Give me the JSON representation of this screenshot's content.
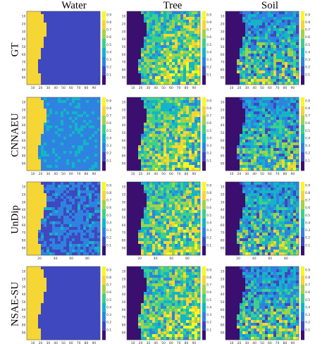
{
  "columns": [
    "Water",
    "Tree",
    "Soil"
  ],
  "rows": [
    "GT",
    "CNNAEU",
    "UnDip",
    "NSAE-SU"
  ],
  "ytick_labels": [
    "10",
    "20",
    "30",
    "40",
    "50",
    "60",
    "70",
    "80",
    "90"
  ],
  "xtick_labels_a": [
    "10",
    "20",
    "30",
    "40",
    "50",
    "60",
    "70",
    "80",
    "90"
  ],
  "xtick_labels_b": [
    "20",
    "40",
    "60",
    "80"
  ],
  "xtick_labels_c": [
    "10",
    "20",
    "30",
    "40",
    "50",
    "60",
    "70",
    "80",
    "90"
  ],
  "colorbar_ticks": [
    "0.9",
    "0.8",
    "0.7",
    "0.6",
    "0.5",
    "0.4",
    "0.3",
    "0.2",
    "0.1"
  ],
  "colormap": [
    "#3b0f70",
    "#3f48bf",
    "#2f83e0",
    "#13b5c6",
    "#3fcf8a",
    "#9fd34a",
    "#f5d634",
    "#f9f821"
  ]
}
